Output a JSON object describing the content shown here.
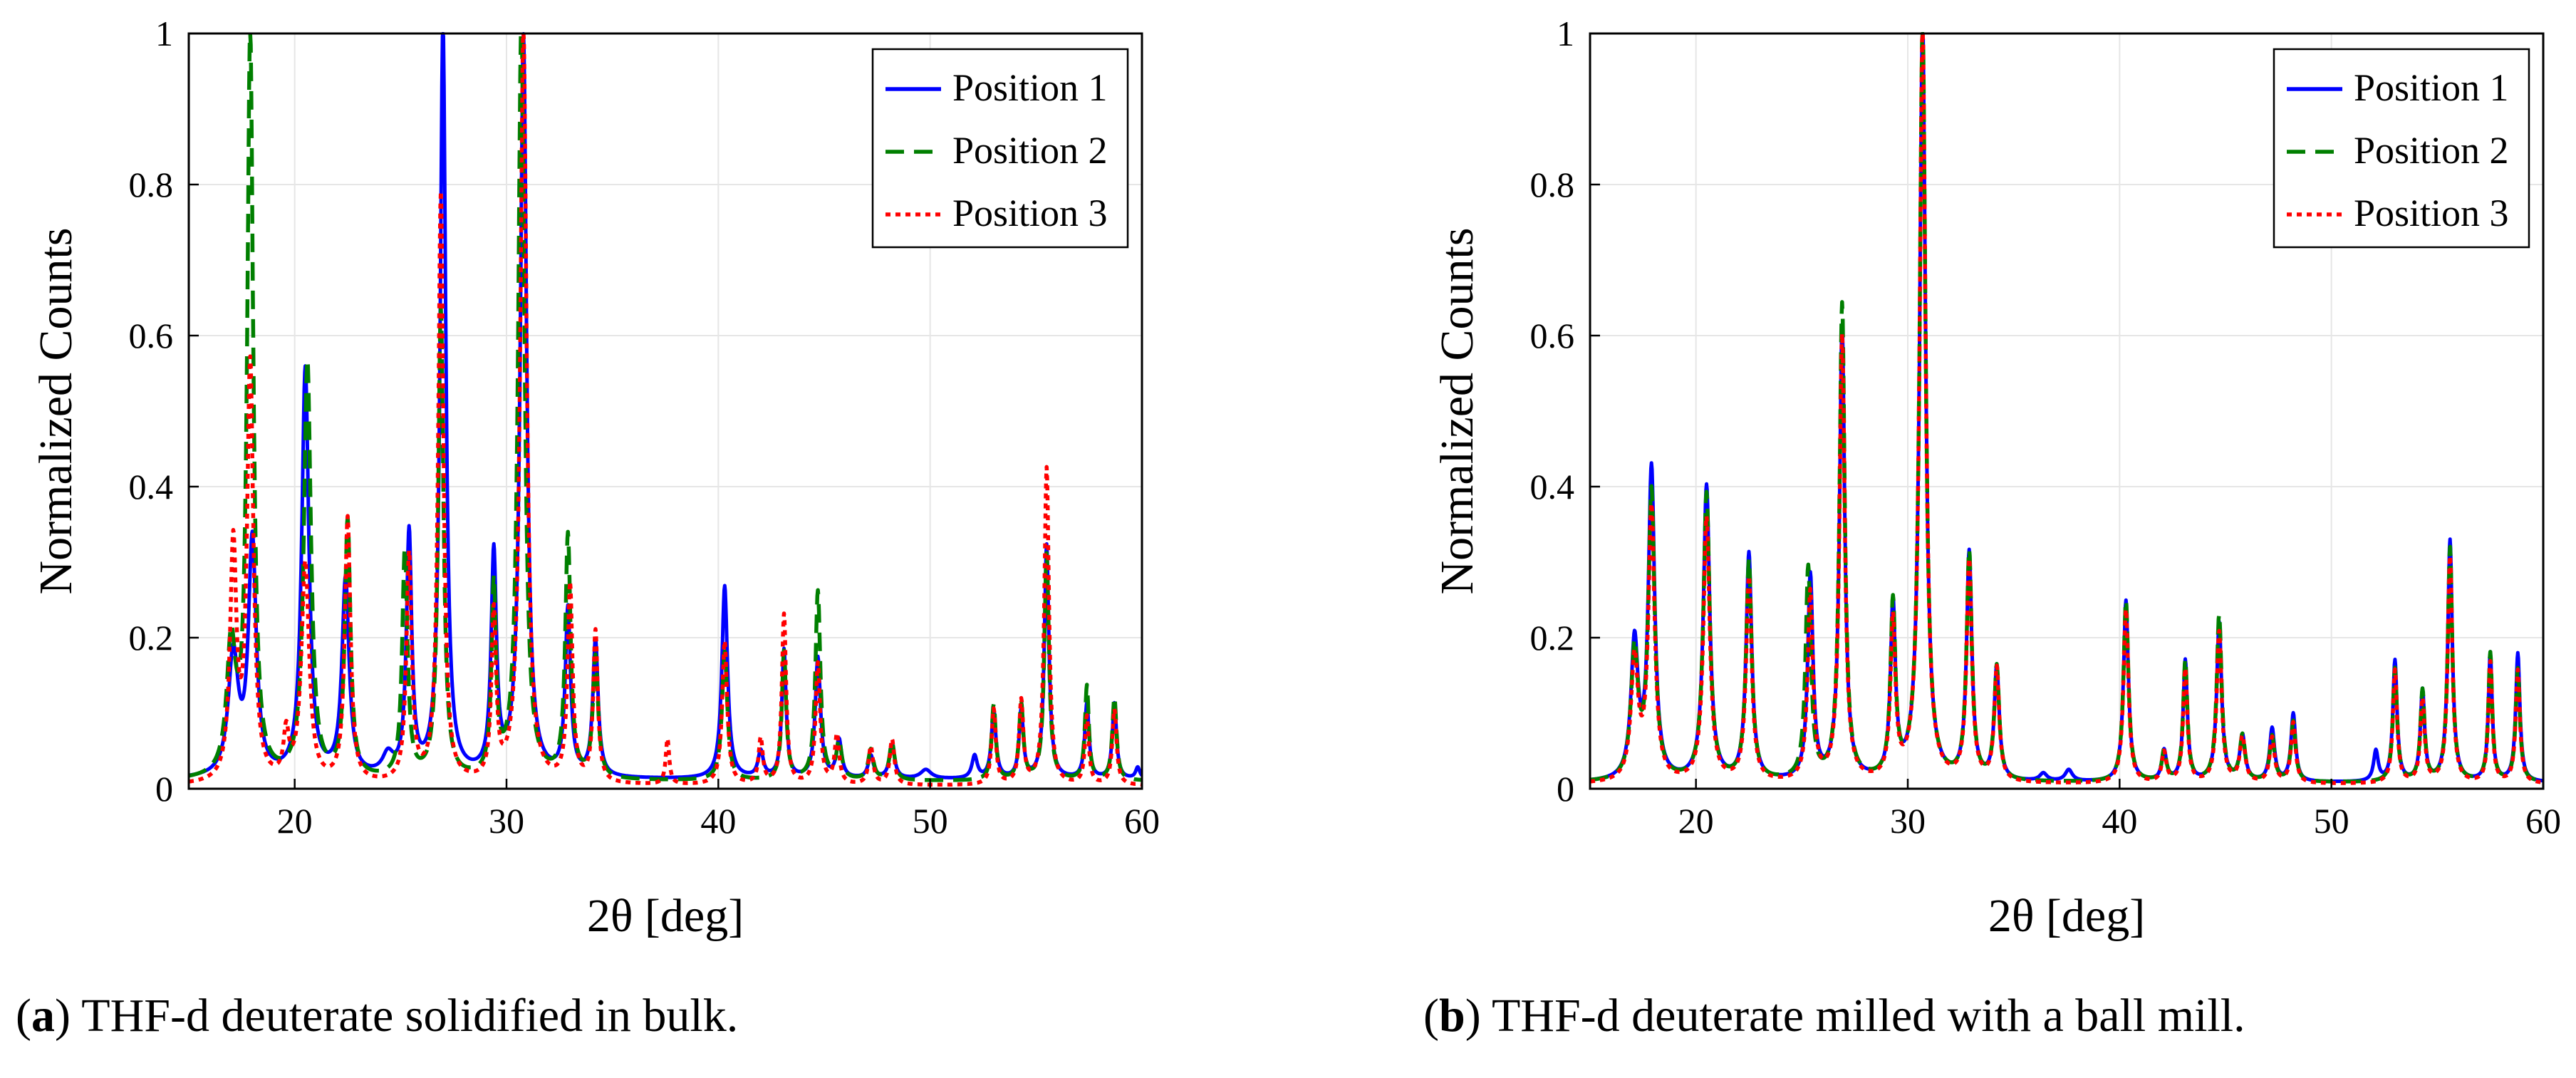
{
  "figure": {
    "captions": [
      {
        "tag": "a",
        "text": " THF-d deuterate solidified in bulk."
      },
      {
        "tag": "b",
        "text": " THF-d deuterate milled with a ball mill."
      }
    ]
  },
  "colors": {
    "position1": "#0000ff",
    "position2": "#007f00",
    "position3": "#ff0000",
    "grid": "#e6e6e6",
    "axis": "#000000"
  },
  "chart_data": [
    {
      "type": "line",
      "panel": "a",
      "xlabel": "2θ [deg]",
      "ylabel": "Normalized Counts",
      "xlim": [
        15,
        60
      ],
      "ylim": [
        0,
        1
      ],
      "xticks": [
        20,
        30,
        40,
        50,
        60
      ],
      "xtick_labels": [
        "20",
        "30",
        "40",
        "50",
        "60"
      ],
      "yticks": [
        0,
        0.2,
        0.4,
        0.6,
        0.8,
        1
      ],
      "ytick_labels": [
        "0",
        "0.2",
        "0.4",
        "0.6",
        "0.8",
        "1"
      ],
      "grid": true,
      "legend": "top-right",
      "series": [
        {
          "name": "Position 1",
          "style": "solid",
          "color_key": "position1",
          "baseline": 0.012,
          "peaks": [
            [
              17.1,
              0.16,
              0.28
            ],
            [
              18.0,
              0.31,
              0.22
            ],
            [
              20.5,
              0.54,
              0.2
            ],
            [
              22.4,
              0.26,
              0.2
            ],
            [
              24.4,
              0.025,
              0.3
            ],
            [
              25.4,
              0.32,
              0.15
            ],
            [
              27.0,
              1.0,
              0.16
            ],
            [
              29.4,
              0.29,
              0.15
            ],
            [
              30.8,
              0.98,
              0.18
            ],
            [
              32.9,
              0.22,
              0.15
            ],
            [
              34.2,
              0.18,
              0.15
            ],
            [
              40.3,
              0.255,
              0.16
            ],
            [
              42.0,
              0.035,
              0.15
            ],
            [
              43.1,
              0.17,
              0.12
            ],
            [
              44.7,
              0.16,
              0.15
            ],
            [
              45.7,
              0.05,
              0.15
            ],
            [
              47.2,
              0.03,
              0.15
            ],
            [
              48.2,
              0.045,
              0.15
            ],
            [
              49.8,
              0.012,
              0.3
            ],
            [
              52.1,
              0.03,
              0.15
            ],
            [
              53.0,
              0.09,
              0.13
            ],
            [
              54.3,
              0.09,
              0.12
            ],
            [
              55.5,
              0.31,
              0.13
            ],
            [
              57.4,
              0.1,
              0.12
            ],
            [
              58.7,
              0.1,
              0.12
            ],
            [
              59.8,
              0.015,
              0.12
            ]
          ]
        },
        {
          "name": "Position 2",
          "style": "dashed",
          "color_key": "position2",
          "baseline": 0.01,
          "peaks": [
            [
              17.0,
              0.17,
              0.25
            ],
            [
              17.9,
              0.98,
              0.17
            ],
            [
              20.6,
              0.55,
              0.2
            ],
            [
              22.5,
              0.34,
              0.16
            ],
            [
              25.2,
              0.3,
              0.15
            ],
            [
              26.9,
              0.62,
              0.15
            ],
            [
              29.4,
              0.25,
              0.13
            ],
            [
              30.7,
              1.0,
              0.18
            ],
            [
              32.9,
              0.32,
              0.15
            ],
            [
              34.2,
              0.16,
              0.15
            ],
            [
              40.3,
              0.17,
              0.15
            ],
            [
              43.1,
              0.17,
              0.12
            ],
            [
              44.7,
              0.25,
              0.14
            ],
            [
              45.7,
              0.05,
              0.15
            ],
            [
              47.2,
              0.04,
              0.15
            ],
            [
              48.2,
              0.05,
              0.15
            ],
            [
              53.0,
              0.1,
              0.12
            ],
            [
              54.3,
              0.1,
              0.12
            ],
            [
              55.5,
              0.3,
              0.13
            ],
            [
              57.4,
              0.125,
              0.11
            ],
            [
              58.7,
              0.11,
              0.12
            ]
          ]
        },
        {
          "name": "Position 3",
          "style": "dotted",
          "color_key": "position3",
          "baseline": 0.004,
          "peaks": [
            [
              17.1,
              0.31,
              0.18
            ],
            [
              17.9,
              0.55,
              0.18
            ],
            [
              19.6,
              0.06,
              0.15
            ],
            [
              20.5,
              0.29,
              0.22
            ],
            [
              22.5,
              0.35,
              0.16
            ],
            [
              25.4,
              0.3,
              0.15
            ],
            [
              26.9,
              0.78,
              0.15
            ],
            [
              29.4,
              0.22,
              0.13
            ],
            [
              30.8,
              1.0,
              0.18
            ],
            [
              33.0,
              0.26,
              0.14
            ],
            [
              34.2,
              0.2,
              0.13
            ],
            [
              37.6,
              0.06,
              0.1
            ],
            [
              40.3,
              0.19,
              0.14
            ],
            [
              42.0,
              0.06,
              0.12
            ],
            [
              43.1,
              0.225,
              0.12
            ],
            [
              44.7,
              0.16,
              0.13
            ],
            [
              45.6,
              0.065,
              0.13
            ],
            [
              47.2,
              0.05,
              0.13
            ],
            [
              48.2,
              0.06,
              0.13
            ],
            [
              53.0,
              0.1,
              0.12
            ],
            [
              54.3,
              0.11,
              0.12
            ],
            [
              55.5,
              0.42,
              0.13
            ],
            [
              57.4,
              0.09,
              0.11
            ],
            [
              58.7,
              0.1,
              0.12
            ]
          ]
        }
      ]
    },
    {
      "type": "line",
      "panel": "b",
      "xlabel": "2θ [deg]",
      "ylabel": "Normalized Counts",
      "xlim": [
        15,
        60
      ],
      "ylim": [
        0,
        1
      ],
      "xticks": [
        20,
        30,
        40,
        50,
        60
      ],
      "xtick_labels": [
        "20",
        "30",
        "40",
        "50",
        "60"
      ],
      "yticks": [
        0,
        0.2,
        0.4,
        0.6,
        0.8,
        1
      ],
      "ytick_labels": [
        "0",
        "0.2",
        "0.4",
        "0.6",
        "0.8",
        "1"
      ],
      "grid": true,
      "legend": "top-right",
      "series": [
        {
          "name": "Position 1",
          "style": "solid",
          "color_key": "position1",
          "baseline": 0.008,
          "peaks": [
            [
              17.1,
              0.18,
              0.2
            ],
            [
              17.9,
              0.41,
              0.18
            ],
            [
              20.5,
              0.39,
              0.18
            ],
            [
              22.5,
              0.3,
              0.16
            ],
            [
              25.4,
              0.27,
              0.15
            ],
            [
              26.9,
              0.6,
              0.15
            ],
            [
              29.3,
              0.23,
              0.14
            ],
            [
              30.7,
              1.0,
              0.17
            ],
            [
              32.9,
              0.3,
              0.15
            ],
            [
              34.2,
              0.15,
              0.14
            ],
            [
              36.4,
              0.01,
              0.2
            ],
            [
              37.6,
              0.015,
              0.2
            ],
            [
              40.3,
              0.24,
              0.14
            ],
            [
              42.1,
              0.04,
              0.13
            ],
            [
              43.1,
              0.16,
              0.12
            ],
            [
              44.7,
              0.21,
              0.14
            ],
            [
              45.8,
              0.06,
              0.15
            ],
            [
              47.2,
              0.07,
              0.14
            ],
            [
              48.2,
              0.09,
              0.13
            ],
            [
              52.1,
              0.04,
              0.13
            ],
            [
              53.0,
              0.16,
              0.12
            ],
            [
              54.3,
              0.12,
              0.12
            ],
            [
              55.6,
              0.32,
              0.13
            ],
            [
              57.5,
              0.17,
              0.11
            ],
            [
              58.8,
              0.17,
              0.12
            ]
          ]
        },
        {
          "name": "Position 2",
          "style": "dashed",
          "color_key": "position2",
          "baseline": 0.008,
          "peaks": [
            [
              17.1,
              0.17,
              0.2
            ],
            [
              17.9,
              0.38,
              0.18
            ],
            [
              20.5,
              0.38,
              0.18
            ],
            [
              22.5,
              0.29,
              0.16
            ],
            [
              25.3,
              0.28,
              0.15
            ],
            [
              26.9,
              0.63,
              0.15
            ],
            [
              29.3,
              0.23,
              0.14
            ],
            [
              30.7,
              1.0,
              0.17
            ],
            [
              32.9,
              0.3,
              0.15
            ],
            [
              34.2,
              0.15,
              0.14
            ],
            [
              40.3,
              0.24,
              0.14
            ],
            [
              42.1,
              0.04,
              0.13
            ],
            [
              43.1,
              0.16,
              0.12
            ],
            [
              44.7,
              0.22,
              0.14
            ],
            [
              45.8,
              0.06,
              0.15
            ],
            [
              47.2,
              0.06,
              0.14
            ],
            [
              48.2,
              0.08,
              0.13
            ],
            [
              53.0,
              0.15,
              0.12
            ],
            [
              54.3,
              0.12,
              0.12
            ],
            [
              55.6,
              0.31,
              0.13
            ],
            [
              57.5,
              0.17,
              0.11
            ],
            [
              58.8,
              0.15,
              0.12
            ]
          ]
        },
        {
          "name": "Position 3",
          "style": "dotted",
          "color_key": "position3",
          "baseline": 0.006,
          "peaks": [
            [
              17.1,
              0.16,
              0.2
            ],
            [
              17.9,
              0.36,
              0.18
            ],
            [
              20.5,
              0.35,
              0.18
            ],
            [
              22.5,
              0.27,
              0.16
            ],
            [
              25.4,
              0.25,
              0.15
            ],
            [
              26.9,
              0.59,
              0.15
            ],
            [
              29.3,
              0.21,
              0.14
            ],
            [
              30.7,
              1.0,
              0.17
            ],
            [
              32.9,
              0.29,
              0.15
            ],
            [
              34.2,
              0.15,
              0.14
            ],
            [
              40.3,
              0.23,
              0.14
            ],
            [
              42.1,
              0.04,
              0.13
            ],
            [
              43.1,
              0.15,
              0.12
            ],
            [
              44.7,
              0.2,
              0.14
            ],
            [
              45.8,
              0.06,
              0.15
            ],
            [
              47.2,
              0.06,
              0.14
            ],
            [
              48.2,
              0.08,
              0.13
            ],
            [
              53.0,
              0.15,
              0.12
            ],
            [
              54.3,
              0.11,
              0.12
            ],
            [
              55.6,
              0.3,
              0.13
            ],
            [
              57.5,
              0.16,
              0.11
            ],
            [
              58.8,
              0.15,
              0.12
            ]
          ]
        }
      ]
    }
  ]
}
